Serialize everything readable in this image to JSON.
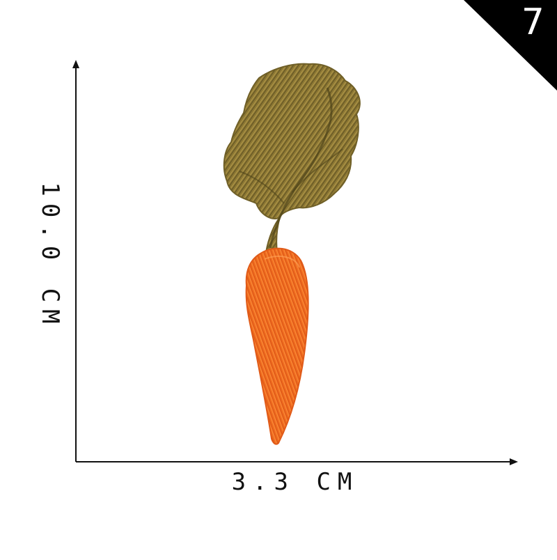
{
  "badge": {
    "number": "7",
    "color": "#000000"
  },
  "dimensions": {
    "height_label": "10.0 CM",
    "width_label": "3.3 CM",
    "axis_color": "#111111"
  },
  "subject": {
    "icon": "embroidered-carrot-patch",
    "root_color": "#f07020",
    "leaf_color": "#8f7a34"
  }
}
